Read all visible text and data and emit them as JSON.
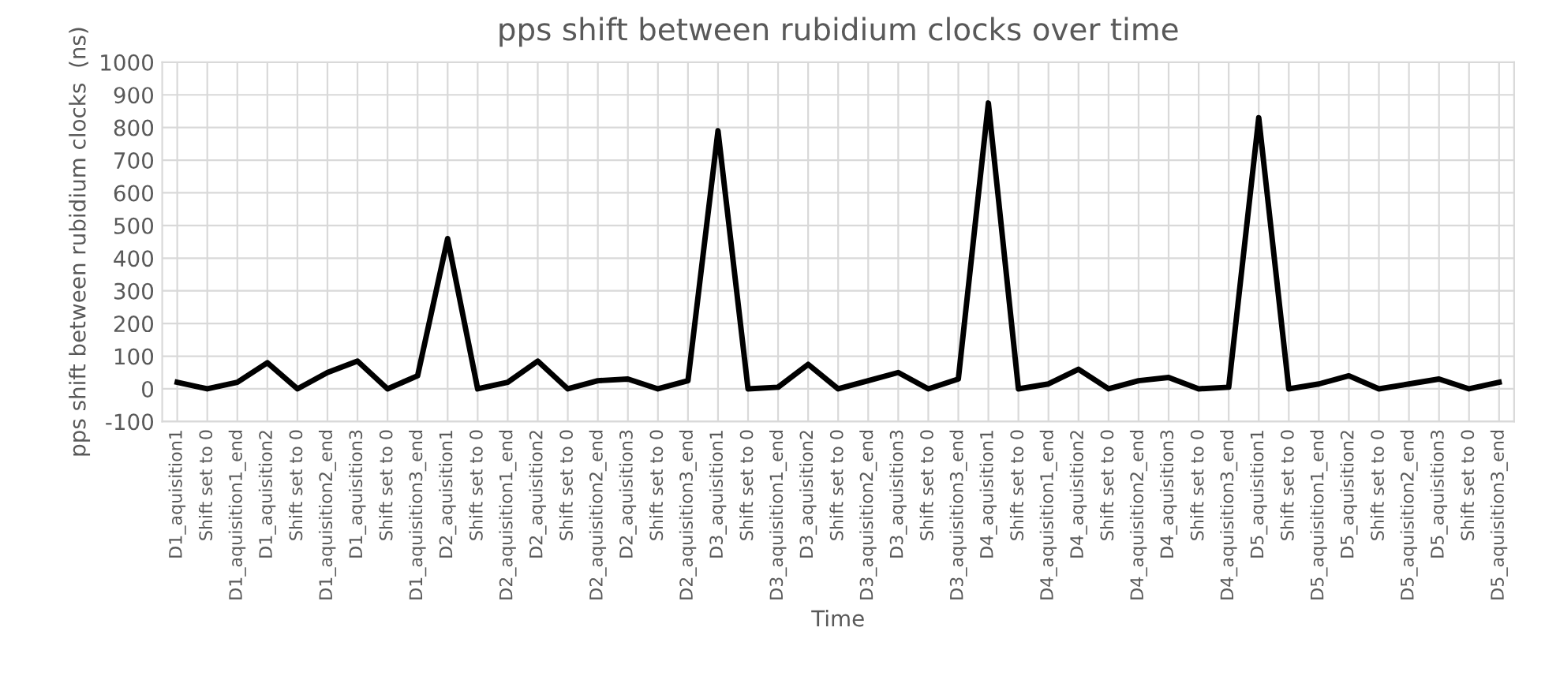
{
  "chart_data": {
    "type": "line",
    "title": "pps shift between rubidium clocks over time",
    "xlabel": "Time",
    "ylabel": "pps shift between rubidium clocks  (ns)",
    "categories": [
      "D1_aquisition1",
      "Shift set to 0",
      "D1_aquisition1_end",
      "D1_aquisition2",
      "Shift set to 0",
      "D1_aquisition2_end",
      "D1_aquisition3",
      "Shift set to 0",
      "D1_aquisition3_end",
      "D2_aquisition1",
      "Shift set to 0",
      "D2_aquisition1_end",
      "D2_aquisition2",
      "Shift set to 0",
      "D2_aquisition2_end",
      "D2_aquisition3",
      "Shift set to 0",
      "D2_aquisition3_end",
      "D3_aquisition1",
      "Shift set to 0",
      "D3_aquisition1_end",
      "D3_aquisition2",
      "Shift set to 0",
      "D3_aquisition2_end",
      "D3_aquisition3",
      "Shift set to 0",
      "D3_aquisition3_end",
      "D4_aquisition1",
      "Shift set to 0",
      "D4_aquisition1_end",
      "D4_aquisition2",
      "Shift set to 0",
      "D4_aquisition2_end",
      "D4_aquisition3",
      "Shift set to 0",
      "D4_aquisition3_end",
      "D5_aquisition1",
      "Shift set to 0",
      "D5_aquisition1_end",
      "D5_aquisition2",
      "Shift set to 0",
      "D5_aquisition2_end",
      "D5_aquisition3",
      "Shift set to 0",
      "D5_aquisition3_end"
    ],
    "series": [
      {
        "color": "#000000",
        "values": [
          20,
          0,
          20,
          80,
          0,
          50,
          85,
          0,
          40,
          460,
          0,
          20,
          85,
          0,
          25,
          30,
          0,
          25,
          790,
          0,
          5,
          75,
          0,
          25,
          50,
          0,
          30,
          875,
          0,
          15,
          60,
          0,
          25,
          35,
          0,
          5,
          830,
          0,
          15,
          40,
          0,
          15,
          30,
          0,
          20
        ]
      }
    ],
    "ylim": [
      -100,
      1000
    ],
    "yticks": [
      -100,
      0,
      100,
      200,
      300,
      400,
      500,
      600,
      700,
      800,
      900,
      1000
    ],
    "grid": true,
    "line_style": "solid",
    "marker": "none"
  }
}
